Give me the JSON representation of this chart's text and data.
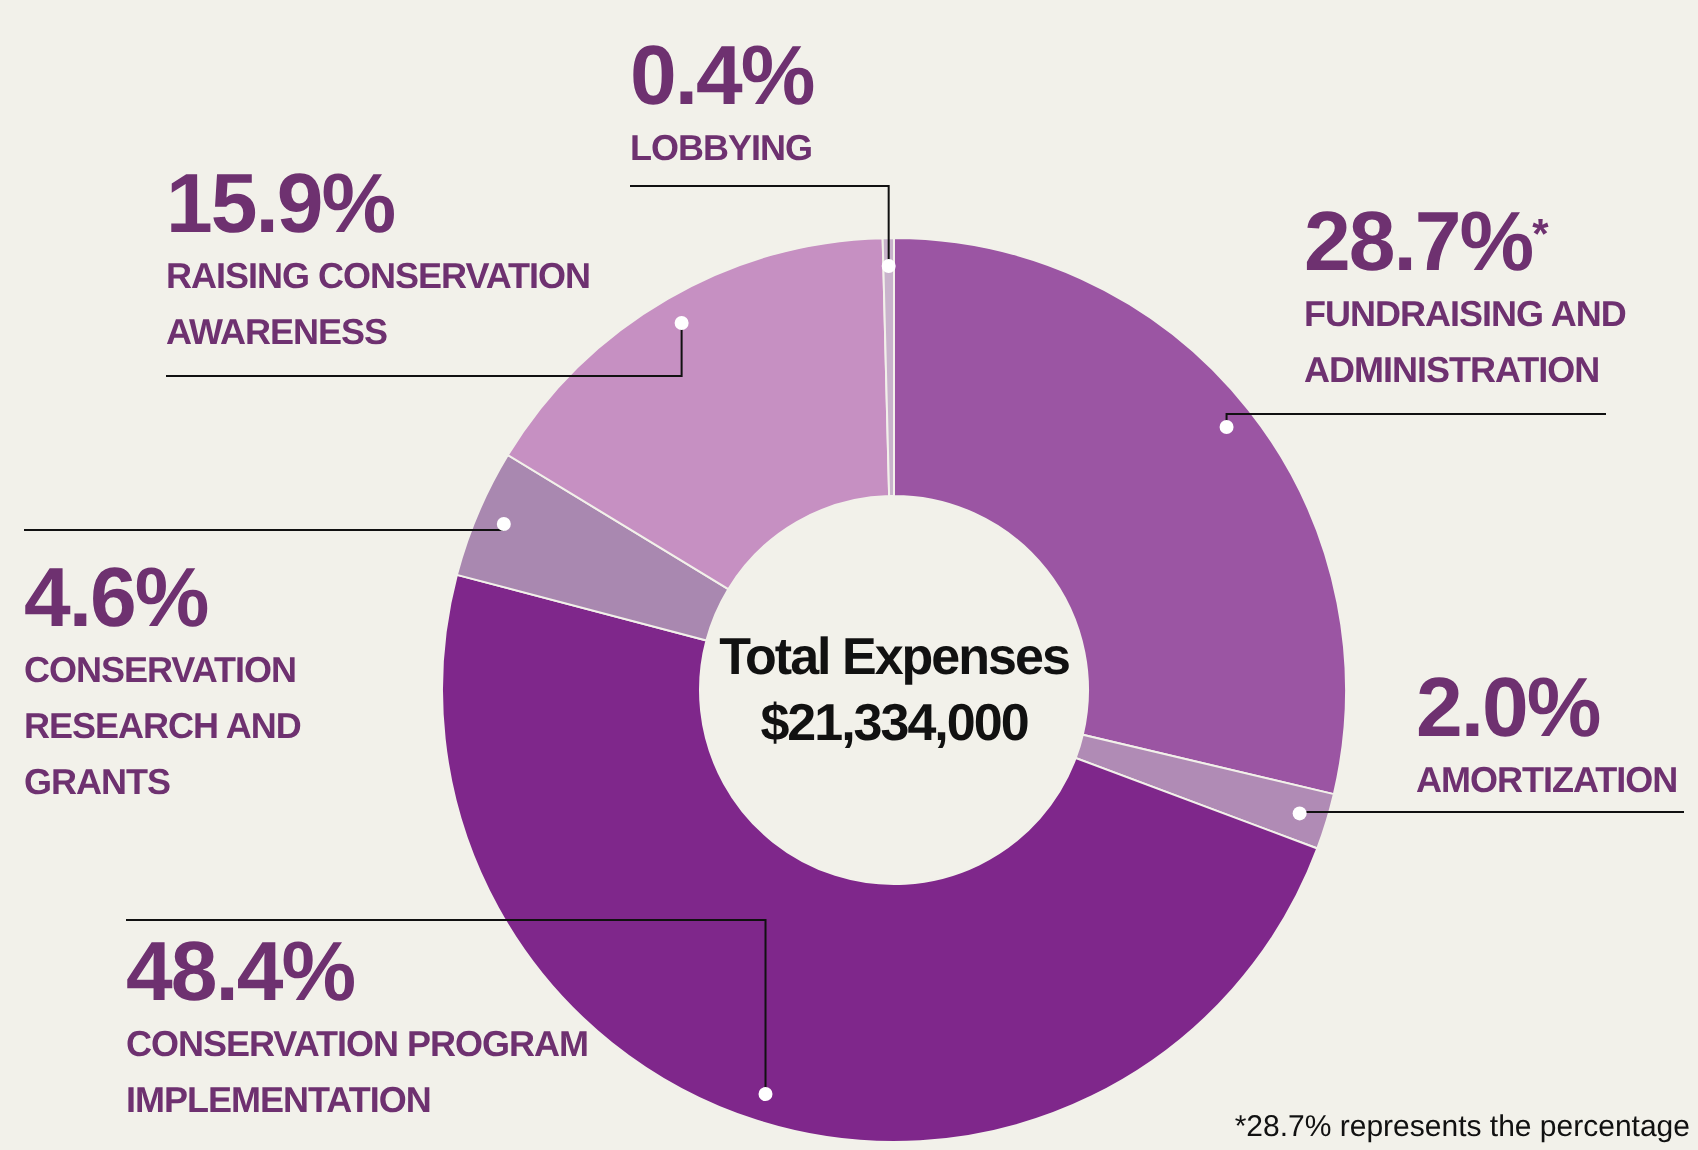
{
  "chart_data": {
    "type": "donut",
    "title": "Total Expenses",
    "subtitle": "$21,334,000",
    "categories": [
      "FUNDRAISING AND ADMINISTRATION",
      "AMORTIZATION",
      "CONSERVATION PROGRAM IMPLEMENTATION",
      "CONSERVATION RESEARCH AND GRANTS",
      "RAISING CONSERVATION AWARENESS",
      "LOBBYING"
    ],
    "values": [
      28.7,
      2.0,
      48.4,
      4.6,
      15.9,
      0.4
    ],
    "colors": [
      "#9b55a3",
      "#b08bb5",
      "#7f278b",
      "#a988b0",
      "#c690c2",
      "#c9b3cc"
    ],
    "value_labels": [
      "28.7%$^{*}$",
      "2.0%",
      "48.4%",
      "4.6%",
      "15.9%",
      "0.4%"
    ],
    "annotations": [
      "*28.7% represents the percentage"
    ]
  }
}
